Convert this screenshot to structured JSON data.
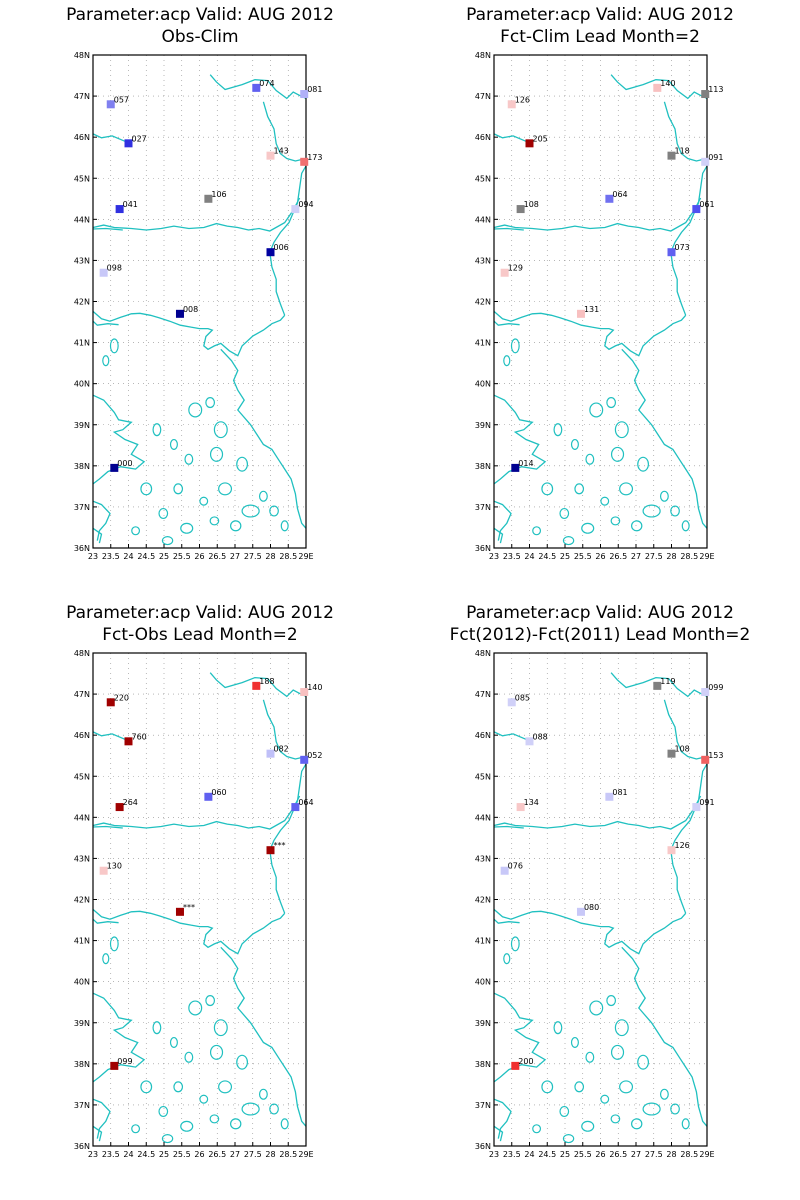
{
  "colors": {
    "coast": "#20c0c0",
    "grid": "#8c8c8c",
    "frame": "#000000"
  },
  "tick_labels": {
    "lat": [
      "36N",
      "37N",
      "38N",
      "39N",
      "40N",
      "41N",
      "42N",
      "43N",
      "44N",
      "45N",
      "46N",
      "47N",
      "48N"
    ],
    "lon": [
      "23",
      "23.5",
      "24",
      "24.5",
      "25",
      "25.5",
      "26",
      "26.5",
      "27",
      "27.5",
      "28",
      "28.5",
      "29E"
    ]
  },
  "panels": [
    {
      "title_line1": "Parameter:acp Valid: AUG 2012",
      "title_line2": "Obs-Clim",
      "stations": [
        {
          "lon": 23.5,
          "lat": 46.8,
          "label": "057",
          "color": "#8080f0"
        },
        {
          "lon": 24.0,
          "lat": 45.85,
          "label": "027",
          "color": "#3030e0"
        },
        {
          "lon": 23.75,
          "lat": 44.25,
          "label": "041",
          "color": "#3030e0"
        },
        {
          "lon": 23.3,
          "lat": 42.7,
          "label": "098",
          "color": "#c8c8f8"
        },
        {
          "lon": 25.45,
          "lat": 41.7,
          "label": "008",
          "color": "#000090"
        },
        {
          "lon": 26.25,
          "lat": 44.5,
          "label": "106",
          "color": "#808080"
        },
        {
          "lon": 27.6,
          "lat": 47.2,
          "label": "074",
          "color": "#6060f0"
        },
        {
          "lon": 28.95,
          "lat": 47.05,
          "label": "081",
          "color": "#b0b0f8"
        },
        {
          "lon": 28.0,
          "lat": 45.55,
          "label": "143",
          "color": "#f8c8c8"
        },
        {
          "lon": 28.95,
          "lat": 45.4,
          "label": "173",
          "color": "#f07070"
        },
        {
          "lon": 28.7,
          "lat": 44.25,
          "label": "094",
          "color": "#d0d0f8"
        },
        {
          "lon": 28.0,
          "lat": 43.2,
          "label": "006",
          "color": "#0000a0"
        },
        {
          "lon": 23.6,
          "lat": 37.95,
          "label": "000",
          "color": "#000090"
        }
      ]
    },
    {
      "title_line1": "Parameter:acp Valid: AUG 2012",
      "title_line2": "Fct-Clim Lead Month=2",
      "stations": [
        {
          "lon": 23.5,
          "lat": 46.8,
          "label": "126",
          "color": "#f8c8c8"
        },
        {
          "lon": 24.0,
          "lat": 45.85,
          "label": "205",
          "color": "#a00000"
        },
        {
          "lon": 23.75,
          "lat": 44.25,
          "label": "108",
          "color": "#808080"
        },
        {
          "lon": 23.3,
          "lat": 42.7,
          "label": "129",
          "color": "#f8c8c8"
        },
        {
          "lon": 25.45,
          "lat": 41.7,
          "label": "131",
          "color": "#f8c0c0"
        },
        {
          "lon": 26.25,
          "lat": 44.5,
          "label": "064",
          "color": "#7070f0"
        },
        {
          "lon": 27.6,
          "lat": 47.2,
          "label": "140",
          "color": "#f8c0c0"
        },
        {
          "lon": 28.95,
          "lat": 47.05,
          "label": "113",
          "color": "#808080"
        },
        {
          "lon": 28.0,
          "lat": 45.55,
          "label": "118",
          "color": "#808080"
        },
        {
          "lon": 28.95,
          "lat": 45.4,
          "label": "091",
          "color": "#d0d0f8"
        },
        {
          "lon": 28.7,
          "lat": 44.25,
          "label": "061",
          "color": "#5050f0"
        },
        {
          "lon": 28.0,
          "lat": 43.2,
          "label": "073",
          "color": "#6060f0"
        },
        {
          "lon": 23.6,
          "lat": 37.95,
          "label": "014",
          "color": "#000090"
        }
      ]
    },
    {
      "title_line1": "Parameter:acp Valid: AUG 2012",
      "title_line2": "Fct-Obs Lead Month=2",
      "stations": [
        {
          "lon": 23.5,
          "lat": 46.8,
          "label": "220",
          "color": "#a00000"
        },
        {
          "lon": 24.0,
          "lat": 45.85,
          "label": "760",
          "color": "#a00000"
        },
        {
          "lon": 23.75,
          "lat": 44.25,
          "label": "264",
          "color": "#a00000"
        },
        {
          "lon": 23.3,
          "lat": 42.7,
          "label": "130",
          "color": "#f8c8c8"
        },
        {
          "lon": 25.45,
          "lat": 41.7,
          "label": "***",
          "color": "#a00000"
        },
        {
          "lon": 26.25,
          "lat": 44.5,
          "label": "060",
          "color": "#6060f0"
        },
        {
          "lon": 27.6,
          "lat": 47.2,
          "label": "188",
          "color": "#f03030"
        },
        {
          "lon": 28.95,
          "lat": 47.05,
          "label": "140",
          "color": "#f8c0c0"
        },
        {
          "lon": 28.0,
          "lat": 45.55,
          "label": "082",
          "color": "#c0c0f8"
        },
        {
          "lon": 28.95,
          "lat": 45.4,
          "label": "052",
          "color": "#6060f0"
        },
        {
          "lon": 28.7,
          "lat": 44.25,
          "label": "064",
          "color": "#6060f0"
        },
        {
          "lon": 28.0,
          "lat": 43.2,
          "label": "***",
          "color": "#a00000"
        },
        {
          "lon": 23.6,
          "lat": 37.95,
          "label": "099",
          "color": "#a00000"
        }
      ]
    },
    {
      "title_line1": "Parameter:acp Valid: AUG 2012",
      "title_line2": "Fct(2012)-Fct(2011) Lead Month=2",
      "stations": [
        {
          "lon": 23.5,
          "lat": 46.8,
          "label": "085",
          "color": "#d0d0f8"
        },
        {
          "lon": 24.0,
          "lat": 45.85,
          "label": "088",
          "color": "#d0d0f8"
        },
        {
          "lon": 23.75,
          "lat": 44.25,
          "label": "134",
          "color": "#f8c8c8"
        },
        {
          "lon": 23.3,
          "lat": 42.7,
          "label": "076",
          "color": "#c8c8f8"
        },
        {
          "lon": 25.45,
          "lat": 41.7,
          "label": "080",
          "color": "#c8c8f8"
        },
        {
          "lon": 26.25,
          "lat": 44.5,
          "label": "081",
          "color": "#c8c8f8"
        },
        {
          "lon": 27.6,
          "lat": 47.2,
          "label": "119",
          "color": "#808080"
        },
        {
          "lon": 28.95,
          "lat": 47.05,
          "label": "099",
          "color": "#d0d0f8"
        },
        {
          "lon": 28.0,
          "lat": 45.55,
          "label": "108",
          "color": "#808080"
        },
        {
          "lon": 28.95,
          "lat": 45.4,
          "label": "153",
          "color": "#f06060"
        },
        {
          "lon": 28.7,
          "lat": 44.25,
          "label": "091",
          "color": "#d0d0f8"
        },
        {
          "lon": 28.0,
          "lat": 43.2,
          "label": "126",
          "color": "#f8c8c8"
        },
        {
          "lon": 23.6,
          "lat": 37.95,
          "label": "200",
          "color": "#f03030"
        }
      ]
    }
  ]
}
